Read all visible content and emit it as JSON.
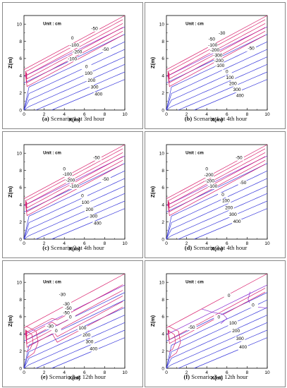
{
  "figure": {
    "panels": [
      {
        "id": "a",
        "caption_tag": "(a)",
        "caption_text": "Scenario 1 at 3rd hour"
      },
      {
        "id": "b",
        "caption_tag": "(b)",
        "caption_text": "Scenario 1 at 4th hour"
      },
      {
        "id": "c",
        "caption_tag": "(c)",
        "caption_text": "Scenario 2 at 4th hour"
      },
      {
        "id": "d",
        "caption_tag": "(d)",
        "caption_text": "Scenario 3 at 4th hour"
      },
      {
        "id": "e",
        "caption_tag": "(e)",
        "caption_text": "Scenario 2 at 12th hour"
      },
      {
        "id": "f",
        "caption_tag": "(f)",
        "caption_text": "Scenario 3 at 12th hour"
      }
    ]
  },
  "chart_data": [
    {
      "id": "a",
      "type": "contour",
      "xlabel": "X(m)",
      "ylabel": "Z(m)",
      "unit_note": "Unit : cm",
      "xlim": [
        0,
        10
      ],
      "ylim": [
        0,
        11
      ],
      "xticks": [
        0,
        2,
        4,
        6,
        8,
        10
      ],
      "yticks": [
        0,
        2,
        4,
        6,
        8,
        10
      ],
      "colors": {
        "positive": "#3b3bdc",
        "negative": "#d81b6a",
        "zero": "#8a2bd0"
      },
      "contour_labels": [
        {
          "text": "-50",
          "x": 7.0,
          "y": 9.3
        },
        {
          "text": "0",
          "x": 4.8,
          "y": 8.2
        },
        {
          "text": "-100",
          "x": 5.0,
          "y": 7.4
        },
        {
          "text": "-200",
          "x": 5.3,
          "y": 6.6
        },
        {
          "text": "-50",
          "x": 8.1,
          "y": 6.9
        },
        {
          "text": "-100",
          "x": 4.8,
          "y": 5.8
        },
        {
          "text": "0",
          "x": 6.2,
          "y": 4.9
        },
        {
          "text": "100",
          "x": 6.4,
          "y": 4.1
        },
        {
          "text": "200",
          "x": 6.7,
          "y": 3.3
        },
        {
          "text": "300",
          "x": 7.0,
          "y": 2.5
        },
        {
          "text": "400",
          "x": 7.4,
          "y": 1.7
        }
      ]
    },
    {
      "id": "b",
      "type": "contour",
      "xlabel": "X(m)",
      "ylabel": "Z(m)",
      "unit_note": "Unit : cm",
      "xlim": [
        0,
        10
      ],
      "ylim": [
        0,
        11
      ],
      "xticks": [
        0,
        2,
        4,
        6,
        8,
        10
      ],
      "yticks": [
        0,
        2,
        4,
        6,
        8,
        10
      ],
      "colors": {
        "positive": "#3b3bdc",
        "negative": "#d81b6a",
        "zero": "#8a2bd0"
      },
      "contour_labels": [
        {
          "text": "-30",
          "x": 5.5,
          "y": 8.8
        },
        {
          "text": "-50",
          "x": 4.5,
          "y": 8.1
        },
        {
          "text": "-100",
          "x": 4.6,
          "y": 7.4
        },
        {
          "text": "-200",
          "x": 4.8,
          "y": 6.8
        },
        {
          "text": "-300",
          "x": 5.1,
          "y": 6.2
        },
        {
          "text": "-200",
          "x": 5.2,
          "y": 5.6
        },
        {
          "text": "-100",
          "x": 5.3,
          "y": 5.0
        },
        {
          "text": "-50",
          "x": 8.4,
          "y": 7.0
        },
        {
          "text": "0",
          "x": 6.0,
          "y": 4.3
        },
        {
          "text": "100",
          "x": 6.3,
          "y": 3.6
        },
        {
          "text": "200",
          "x": 6.6,
          "y": 2.9
        },
        {
          "text": "300",
          "x": 7.0,
          "y": 2.2
        },
        {
          "text": "400",
          "x": 7.3,
          "y": 1.5
        }
      ]
    },
    {
      "id": "c",
      "type": "contour",
      "xlabel": "X(m)",
      "ylabel": "Z(m)",
      "unit_note": "Unit : cm",
      "xlim": [
        0,
        10
      ],
      "ylim": [
        0,
        11
      ],
      "xticks": [
        0,
        2,
        4,
        6,
        8,
        10
      ],
      "yticks": [
        0,
        2,
        4,
        6,
        8,
        10
      ],
      "colors": {
        "positive": "#3b3bdc",
        "negative": "#d81b6a",
        "zero": "#8a2bd0"
      },
      "contour_labels": [
        {
          "text": "-50",
          "x": 7.2,
          "y": 9.3
        },
        {
          "text": "0",
          "x": 4.0,
          "y": 8.0
        },
        {
          "text": "-100",
          "x": 4.3,
          "y": 7.4
        },
        {
          "text": "-200",
          "x": 4.6,
          "y": 6.7
        },
        {
          "text": "-100",
          "x": 5.0,
          "y": 6.0
        },
        {
          "text": "-50",
          "x": 8.1,
          "y": 6.8
        },
        {
          "text": "0",
          "x": 5.8,
          "y": 4.9
        },
        {
          "text": "100",
          "x": 6.1,
          "y": 4.1
        },
        {
          "text": "200",
          "x": 6.5,
          "y": 3.3
        },
        {
          "text": "300",
          "x": 6.9,
          "y": 2.5
        },
        {
          "text": "400",
          "x": 7.3,
          "y": 1.7
        }
      ]
    },
    {
      "id": "d",
      "type": "contour",
      "xlabel": "X(m)",
      "ylabel": "Z(m)",
      "unit_note": "Unit : cm",
      "xlim": [
        0,
        10
      ],
      "ylim": [
        0,
        11
      ],
      "xticks": [
        0,
        2,
        4,
        6,
        8,
        10
      ],
      "yticks": [
        0,
        2,
        4,
        6,
        8,
        10
      ],
      "colors": {
        "positive": "#3b3bdc",
        "negative": "#d81b6a",
        "zero": "#8a2bd0"
      },
      "contour_labels": [
        {
          "text": "-50",
          "x": 7.2,
          "y": 9.3
        },
        {
          "text": "0",
          "x": 4.0,
          "y": 8.0
        },
        {
          "text": "-200",
          "x": 4.2,
          "y": 7.3
        },
        {
          "text": "-200",
          "x": 4.3,
          "y": 6.6
        },
        {
          "text": "-100",
          "x": 4.6,
          "y": 6.0
        },
        {
          "text": "-50",
          "x": 7.6,
          "y": 6.4
        },
        {
          "text": "0",
          "x": 5.6,
          "y": 5.0
        },
        {
          "text": "100",
          "x": 5.9,
          "y": 4.3
        },
        {
          "text": "200",
          "x": 6.2,
          "y": 3.5
        },
        {
          "text": "300",
          "x": 6.6,
          "y": 2.7
        },
        {
          "text": "400",
          "x": 7.0,
          "y": 1.9
        }
      ]
    },
    {
      "id": "e",
      "type": "contour",
      "xlabel": "X(m)",
      "ylabel": "Z(m)",
      "unit_note": "Unit : cm",
      "xlim": [
        0,
        10
      ],
      "ylim": [
        0,
        11
      ],
      "xticks": [
        0,
        2,
        4,
        6,
        8,
        10
      ],
      "yticks": [
        0,
        2,
        4,
        6,
        8,
        10
      ],
      "colors": {
        "positive": "#3b3bdc",
        "negative": "#d81b6a",
        "zero": "#8a2bd0"
      },
      "contour_labels": [
        {
          "text": "-30",
          "x": 3.8,
          "y": 8.4
        },
        {
          "text": "-30",
          "x": 4.2,
          "y": 7.3
        },
        {
          "text": "-50",
          "x": 4.4,
          "y": 6.8
        },
        {
          "text": "-50",
          "x": 4.2,
          "y": 6.3
        },
        {
          "text": "0",
          "x": 4.6,
          "y": 5.8
        },
        {
          "text": "-30",
          "x": 2.6,
          "y": 4.7
        },
        {
          "text": "0",
          "x": 3.2,
          "y": 4.2
        },
        {
          "text": "100",
          "x": 5.8,
          "y": 4.5
        },
        {
          "text": "200",
          "x": 6.2,
          "y": 3.7
        },
        {
          "text": "300",
          "x": 6.5,
          "y": 2.9
        },
        {
          "text": "400",
          "x": 6.9,
          "y": 2.1
        }
      ]
    },
    {
      "id": "f",
      "type": "contour",
      "xlabel": "X(m)",
      "ylabel": "Z(m)",
      "unit_note": "Unit : cm",
      "xlim": [
        0,
        10
      ],
      "ylim": [
        0,
        11
      ],
      "xticks": [
        0,
        2,
        4,
        6,
        8,
        10
      ],
      "yticks": [
        0,
        2,
        4,
        6,
        8,
        10
      ],
      "colors": {
        "positive": "#3b3bdc",
        "negative": "#d81b6a",
        "zero": "#8a2bd0"
      },
      "contour_labels": [
        {
          "text": "0",
          "x": 6.2,
          "y": 8.3
        },
        {
          "text": "0",
          "x": 8.6,
          "y": 7.2
        },
        {
          "text": "0",
          "x": 5.2,
          "y": 5.8
        },
        {
          "text": "-50",
          "x": 2.5,
          "y": 4.6
        },
        {
          "text": "100",
          "x": 6.6,
          "y": 5.1
        },
        {
          "text": "200",
          "x": 6.9,
          "y": 4.2
        },
        {
          "text": "300",
          "x": 7.3,
          "y": 3.3
        },
        {
          "text": "400",
          "x": 7.6,
          "y": 2.3
        }
      ]
    }
  ]
}
